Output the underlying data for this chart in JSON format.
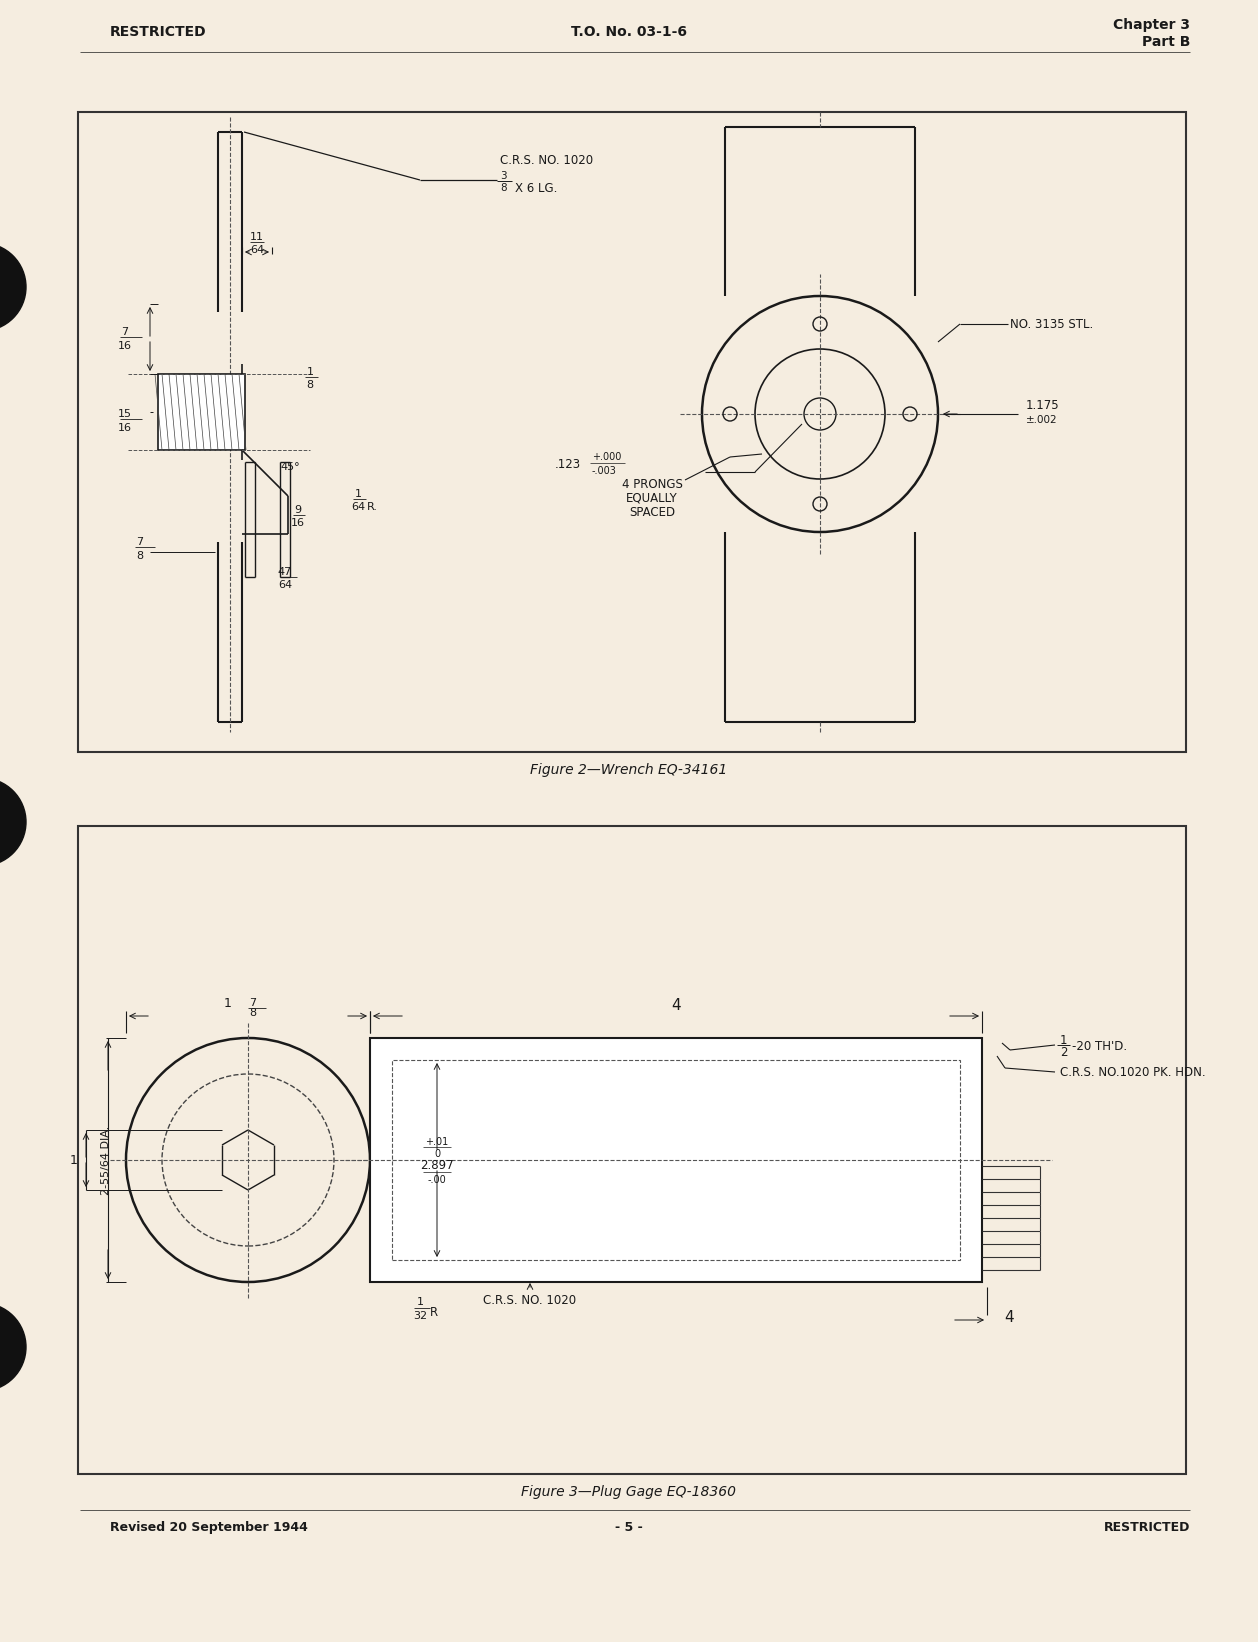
{
  "page_bg_color": "#f5ede0",
  "border_color": "#2a2a2a",
  "text_color": "#1a1a1a",
  "header_left": "RESTRICTED",
  "header_center": "T.O. No. 03-1-6",
  "header_right_line1": "Chapter 3",
  "header_right_line2": "Part B",
  "footer_left": "Revised 20 September 1944",
  "footer_center": "- 5 -",
  "footer_right": "RESTRICTED",
  "fig2_caption": "Figure 2—Wrench EQ-34161",
  "fig3_caption": "Figure 3—Plug Gage EQ-18360"
}
